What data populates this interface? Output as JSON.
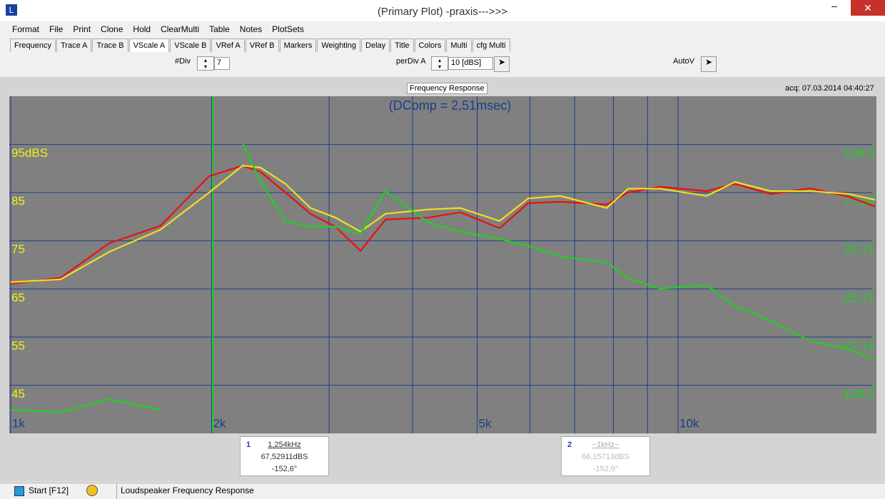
{
  "window": {
    "title": "(Primary Plot) -praxis--->>>"
  },
  "menu": [
    "Format",
    "File",
    "Print",
    "Clone",
    "Hold",
    "ClearMulti",
    "Table",
    "Notes",
    "PlotSets"
  ],
  "tabs": [
    "Frequency",
    "Trace A",
    "Trace B",
    "VScale A",
    "VScale B",
    "VRef A",
    "VRef B",
    "Markers",
    "Weighting",
    "Delay",
    "Title",
    "Colors",
    "Multi",
    "cfg Multi"
  ],
  "controls": {
    "div_label": "#Div",
    "div_value": "7",
    "perdiv_label": "perDiv A",
    "perdiv_value": "10 [dBS]",
    "autov_label": "AutoV"
  },
  "chart_data": {
    "type": "line",
    "title": "Frequency Response",
    "subtitle": "acq: 07.03.2014 04:40:27",
    "annotations": [
      "(DComp = 2,51msec)"
    ],
    "xscale": "log",
    "x": [
      1000,
      1188,
      1405,
      1677,
      1983,
      2226,
      2367,
      2581,
      2814,
      3067,
      3343,
      3643,
      4223,
      4718,
      5402,
      5963,
      6663,
      7817,
      8415,
      9404,
      11035,
      12177,
      13772,
      15773,
      18056,
      19731
    ],
    "xlim": [
      1000,
      19731
    ],
    "xticks": [
      {
        "value": 1000,
        "label": "1k"
      },
      {
        "value": 2000,
        "label": "2k"
      },
      {
        "value": 5000,
        "label": "5k"
      },
      {
        "value": 10000,
        "label": "10k"
      }
    ],
    "xgrid_minor": [
      3000,
      4000,
      6000,
      7000,
      8000,
      9000
    ],
    "ylim": [
      35,
      105
    ],
    "yticks": [
      {
        "value": 95,
        "label": "95dBS"
      },
      85,
      75,
      65,
      55,
      45
    ],
    "y2lim": [
      -180,
      180
    ],
    "y2ticks": [
      {
        "value": 128.5,
        "label": "128,5"
      },
      {
        "value": 77.14,
        "label": "77,14"
      },
      {
        "value": 25.71,
        "label": "25,71"
      },
      {
        "value": -25.71,
        "label": "-25,71"
      },
      {
        "value": -77.14,
        "label": "-77,14"
      },
      {
        "value": -128.5,
        "label": "-128,5"
      }
    ],
    "grid": true,
    "series": [
      {
        "color": "#e81010",
        "values": [
          66.1,
          67.3,
          74.5,
          78.1,
          88.4,
          90.6,
          89.3,
          85.0,
          80.6,
          77.9,
          72.9,
          79.4,
          79.8,
          80.9,
          77.6,
          82.8,
          83.1,
          82.5,
          85.0,
          86.2,
          85.3,
          86.8,
          84.7,
          85.9,
          84.1,
          82.1
        ]
      },
      {
        "color": "#f0e020",
        "values": [
          66.4,
          67.0,
          72.7,
          77.3,
          85.0,
          90.6,
          90.2,
          86.8,
          81.8,
          79.8,
          76.9,
          80.6,
          81.5,
          81.8,
          79.1,
          83.8,
          84.3,
          81.8,
          85.8,
          85.8,
          84.3,
          87.2,
          85.3,
          85.3,
          84.7,
          83.5
        ]
      },
      {
        "color": "#20d020",
        "axis": "y2",
        "values": [
          -154.9,
          -157.2,
          -143.5,
          -154.9,
          null,
          130.5,
          88.7,
          46.8,
          40.7,
          40.7,
          33.1,
          78.8,
          45.3,
          35.4,
          27.8,
          20.2,
          8.8,
          2.7,
          -14.1,
          -25.5,
          -21.7,
          -44.5,
          -59.7,
          -81.1,
          -90.2,
          -101.6
        ]
      }
    ]
  },
  "markers": [
    {
      "id": "1",
      "freq": "1,254kHz",
      "level": "67,52911dBS",
      "phase": "-152,6°"
    },
    {
      "id": "2",
      "freq": "~1kHz~",
      "level": "66,15713dBS",
      "phase": "-152,9°"
    }
  ],
  "status": {
    "start": "Start [F12]",
    "text": "Loudspeaker Frequency Response"
  }
}
